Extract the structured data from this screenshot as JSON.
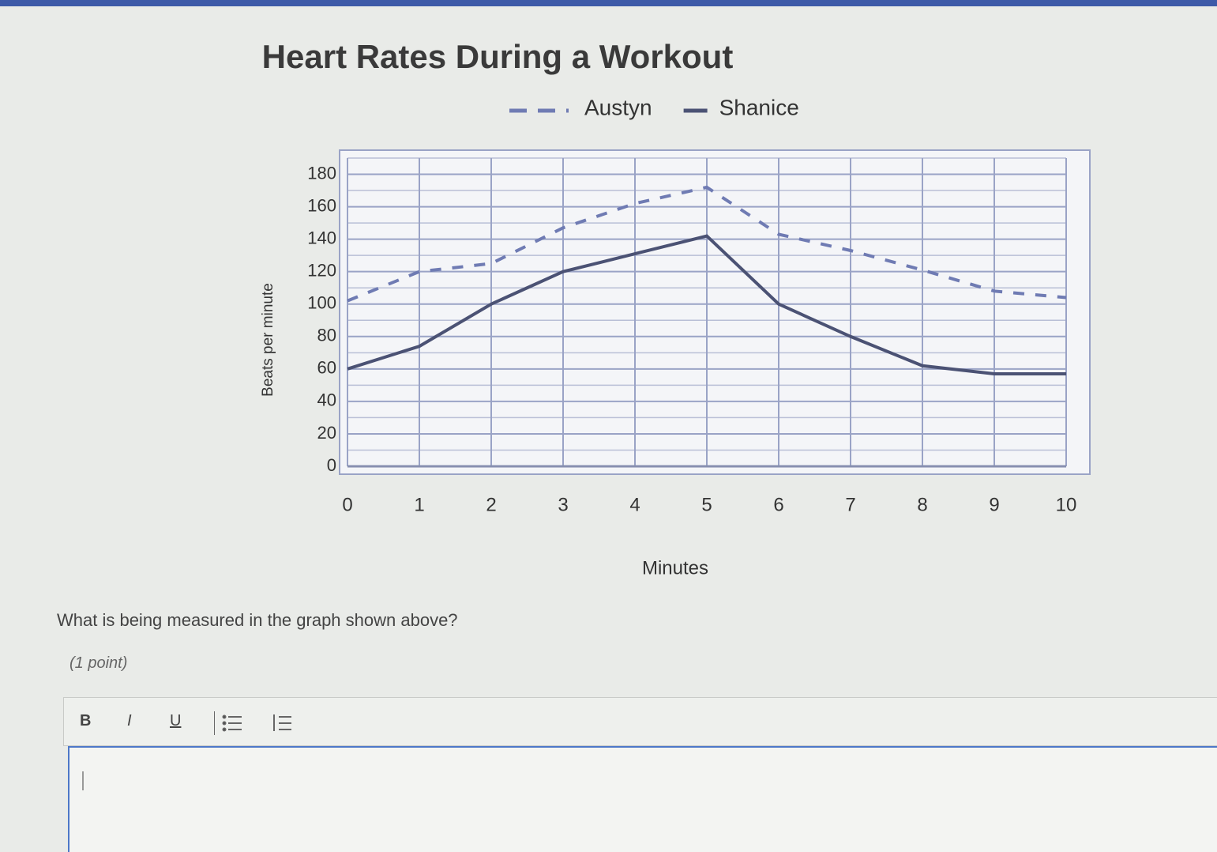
{
  "chart_data": {
    "type": "line",
    "title": "Heart Rates During a Workout",
    "x_label": "Minutes",
    "y_label": "Beats per minute",
    "x": [
      0,
      1,
      2,
      3,
      4,
      5,
      6,
      7,
      8,
      9,
      10
    ],
    "series": [
      {
        "name": "Austyn",
        "color": "#6f7bb3",
        "style": "dashed",
        "values": [
          102,
          120,
          125,
          147,
          162,
          172,
          143,
          133,
          121,
          108,
          104
        ]
      },
      {
        "name": "Shanice",
        "color": "#4b5274",
        "style": "solid",
        "values": [
          60,
          74,
          100,
          120,
          131,
          142,
          100,
          80,
          62,
          57,
          57
        ]
      }
    ],
    "xlim": [
      0,
      10
    ],
    "xticks": [
      0,
      1,
      2,
      3,
      4,
      5,
      6,
      7,
      8,
      9,
      10
    ],
    "ylim": [
      0,
      190
    ],
    "yticks": [
      0,
      20,
      40,
      60,
      80,
      100,
      120,
      140,
      160,
      180
    ],
    "minor_yticks": [
      10,
      30,
      50,
      70,
      90,
      110,
      130,
      150,
      170,
      190
    ],
    "grid": true,
    "legend": "top"
  },
  "question": "What is being measured in the graph shown above?",
  "points": "(1 point)",
  "toolbar": {
    "bold": "B",
    "italic": "I",
    "underline": "U"
  }
}
